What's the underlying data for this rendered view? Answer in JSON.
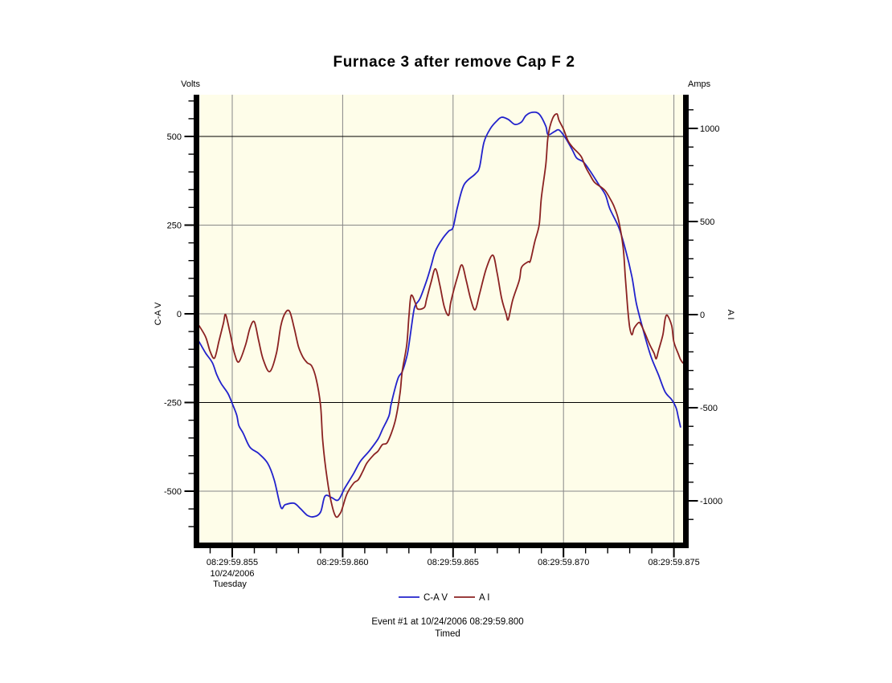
{
  "chart_data": {
    "type": "line",
    "title": "Furnace 3 after remove Cap F 2",
    "left_axis": {
      "unit_label": "Volts",
      "title": "C-A V",
      "ticks": [
        500,
        250,
        0,
        -250,
        -500
      ],
      "minor_step": 50,
      "minor_range": [
        -600,
        600
      ]
    },
    "right_axis": {
      "unit_label": "Amps",
      "title": "A I",
      "ticks": [
        1000,
        500,
        0,
        -500,
        -1000
      ],
      "minor_step": 100,
      "minor_range": [
        -1100,
        1100
      ]
    },
    "x_axis": {
      "tick_labels": [
        "08:29:59.855",
        "08:29:59.860",
        "08:29:59.865",
        "08:29:59.870",
        "08:29:59.875"
      ],
      "tick_times_ms": [
        855,
        860,
        865,
        870,
        875
      ],
      "minor_step_ms": 1,
      "date_label": "10/24/2006",
      "day_label": "Tuesday"
    },
    "grid": {
      "dark_horizontal_values": [
        500,
        -250
      ],
      "grid_color": "#878787",
      "dark_color": "#000000"
    },
    "plot_bg_color": "#FEFDE9",
    "legend": [
      {
        "label": "C-A V",
        "color": "#2222CC"
      },
      {
        "label": "A I",
        "color": "#8B2222"
      }
    ],
    "footer": {
      "line1": "Event #1 at 10/24/2006 08:29:59.800",
      "line2": "Timed"
    },
    "series": [
      {
        "name": "C-A V",
        "axis": "left",
        "color": "#2222CC",
        "points": [
          [
            853.5,
            -79
          ],
          [
            853.8,
            -111
          ],
          [
            854.1,
            -138
          ],
          [
            854.3,
            -172
          ],
          [
            854.5,
            -197
          ],
          [
            854.8,
            -224
          ],
          [
            855.0,
            -253
          ],
          [
            855.2,
            -285
          ],
          [
            855.3,
            -315
          ],
          [
            855.5,
            -337
          ],
          [
            855.8,
            -376
          ],
          [
            856.2,
            -394
          ],
          [
            856.6,
            -421
          ],
          [
            856.9,
            -468
          ],
          [
            857.2,
            -545
          ],
          [
            857.4,
            -538
          ],
          [
            857.8,
            -534
          ],
          [
            858.1,
            -550
          ],
          [
            858.4,
            -568
          ],
          [
            858.7,
            -572
          ],
          [
            859.0,
            -559
          ],
          [
            859.2,
            -514
          ],
          [
            859.5,
            -518
          ],
          [
            859.8,
            -525
          ],
          [
            860.1,
            -491
          ],
          [
            860.5,
            -450
          ],
          [
            860.8,
            -416
          ],
          [
            861.2,
            -387
          ],
          [
            861.6,
            -353
          ],
          [
            861.8,
            -326
          ],
          [
            862.1,
            -287
          ],
          [
            862.2,
            -253
          ],
          [
            862.5,
            -183
          ],
          [
            862.7,
            -163
          ],
          [
            862.9,
            -122
          ],
          [
            863.0,
            -88
          ],
          [
            863.2,
            0
          ],
          [
            863.3,
            25
          ],
          [
            863.5,
            43
          ],
          [
            863.8,
            93
          ],
          [
            864.0,
            134
          ],
          [
            864.2,
            177
          ],
          [
            864.5,
            210
          ],
          [
            864.8,
            233
          ],
          [
            865.0,
            244
          ],
          [
            865.2,
            301
          ],
          [
            865.5,
            364
          ],
          [
            866.0,
            394
          ],
          [
            866.2,
            414
          ],
          [
            866.4,
            484
          ],
          [
            866.7,
            523
          ],
          [
            867.0,
            545
          ],
          [
            867.2,
            554
          ],
          [
            867.5,
            548
          ],
          [
            867.8,
            534
          ],
          [
            868.1,
            541
          ],
          [
            868.3,
            559
          ],
          [
            868.6,
            568
          ],
          [
            868.9,
            563
          ],
          [
            869.2,
            529
          ],
          [
            869.3,
            505
          ],
          [
            869.6,
            514
          ],
          [
            869.8,
            518
          ],
          [
            870.1,
            495
          ],
          [
            870.4,
            462
          ],
          [
            870.6,
            439
          ],
          [
            870.9,
            428
          ],
          [
            871.2,
            403
          ],
          [
            871.6,
            364
          ],
          [
            871.9,
            335
          ],
          [
            872.1,
            296
          ],
          [
            872.5,
            244
          ],
          [
            872.8,
            183
          ],
          [
            873.1,
            104
          ],
          [
            873.3,
            29
          ],
          [
            873.6,
            -43
          ],
          [
            873.8,
            -88
          ],
          [
            874.0,
            -127
          ],
          [
            874.3,
            -172
          ],
          [
            874.6,
            -220
          ],
          [
            874.9,
            -242
          ],
          [
            875.1,
            -265
          ],
          [
            875.2,
            -292
          ],
          [
            875.3,
            -319
          ]
        ]
      },
      {
        "name": "A I",
        "axis": "right",
        "color": "#8B2222",
        "points": [
          [
            853.5,
            -60
          ],
          [
            853.8,
            -121
          ],
          [
            854.0,
            -198
          ],
          [
            854.2,
            -233
          ],
          [
            854.4,
            -142
          ],
          [
            854.6,
            -47
          ],
          [
            854.7,
            0
          ],
          [
            854.9,
            -99
          ],
          [
            855.1,
            -207
          ],
          [
            855.3,
            -254
          ],
          [
            855.6,
            -164
          ],
          [
            855.8,
            -73
          ],
          [
            856.0,
            -39
          ],
          [
            856.2,
            -142
          ],
          [
            856.4,
            -241
          ],
          [
            856.7,
            -306
          ],
          [
            857.0,
            -207
          ],
          [
            857.2,
            -60
          ],
          [
            857.4,
            9
          ],
          [
            857.6,
            17
          ],
          [
            857.8,
            -69
          ],
          [
            858.0,
            -172
          ],
          [
            858.2,
            -228
          ],
          [
            858.4,
            -259
          ],
          [
            858.6,
            -276
          ],
          [
            858.8,
            -345
          ],
          [
            859.0,
            -487
          ],
          [
            859.1,
            -681
          ],
          [
            859.3,
            -884
          ],
          [
            859.5,
            -1017
          ],
          [
            859.7,
            -1086
          ],
          [
            859.9,
            -1065
          ],
          [
            860.0,
            -1034
          ],
          [
            860.2,
            -961
          ],
          [
            860.5,
            -905
          ],
          [
            860.7,
            -888
          ],
          [
            860.9,
            -845
          ],
          [
            861.1,
            -797
          ],
          [
            861.4,
            -754
          ],
          [
            861.6,
            -733
          ],
          [
            861.8,
            -698
          ],
          [
            862.0,
            -690
          ],
          [
            862.2,
            -638
          ],
          [
            862.4,
            -560
          ],
          [
            862.6,
            -422
          ],
          [
            862.7,
            -302
          ],
          [
            862.9,
            -164
          ],
          [
            863.0,
            -13
          ],
          [
            863.1,
            103
          ],
          [
            863.3,
            60
          ],
          [
            863.4,
            30
          ],
          [
            863.7,
            39
          ],
          [
            863.8,
            82
          ],
          [
            864.0,
            172
          ],
          [
            864.2,
            246
          ],
          [
            864.4,
            159
          ],
          [
            864.6,
            43
          ],
          [
            864.8,
            -4
          ],
          [
            864.9,
            69
          ],
          [
            865.2,
            203
          ],
          [
            865.4,
            267
          ],
          [
            865.6,
            181
          ],
          [
            865.8,
            82
          ],
          [
            866.0,
            26
          ],
          [
            866.2,
            112
          ],
          [
            866.5,
            246
          ],
          [
            866.8,
            319
          ],
          [
            867.0,
            220
          ],
          [
            867.2,
            86
          ],
          [
            867.4,
            4
          ],
          [
            867.5,
            -26
          ],
          [
            867.7,
            78
          ],
          [
            868.0,
            185
          ],
          [
            868.1,
            254
          ],
          [
            868.4,
            284
          ],
          [
            868.5,
            289
          ],
          [
            868.7,
            392
          ],
          [
            868.9,
            483
          ],
          [
            869.0,
            629
          ],
          [
            869.2,
            806
          ],
          [
            869.3,
            957
          ],
          [
            869.5,
            1052
          ],
          [
            869.7,
            1078
          ],
          [
            869.8,
            1043
          ],
          [
            870.0,
            996
          ],
          [
            870.2,
            935
          ],
          [
            870.4,
            901
          ],
          [
            870.5,
            888
          ],
          [
            870.8,
            849
          ],
          [
            871.0,
            793
          ],
          [
            871.2,
            750
          ],
          [
            871.4,
            711
          ],
          [
            871.7,
            685
          ],
          [
            871.9,
            664
          ],
          [
            872.1,
            625
          ],
          [
            872.3,
            578
          ],
          [
            872.5,
            504
          ],
          [
            872.7,
            362
          ],
          [
            872.8,
            203
          ],
          [
            872.9,
            43
          ],
          [
            873.0,
            -69
          ],
          [
            873.1,
            -108
          ],
          [
            873.2,
            -73
          ],
          [
            873.4,
            -43
          ],
          [
            873.5,
            -52
          ],
          [
            873.7,
            -103
          ],
          [
            873.9,
            -160
          ],
          [
            874.1,
            -207
          ],
          [
            874.2,
            -237
          ],
          [
            874.3,
            -194
          ],
          [
            874.5,
            -108
          ],
          [
            874.6,
            -26
          ],
          [
            874.7,
            -4
          ],
          [
            874.9,
            -60
          ],
          [
            875.0,
            -147
          ],
          [
            875.2,
            -211
          ],
          [
            875.3,
            -241
          ],
          [
            875.4,
            -259
          ]
        ]
      }
    ]
  }
}
